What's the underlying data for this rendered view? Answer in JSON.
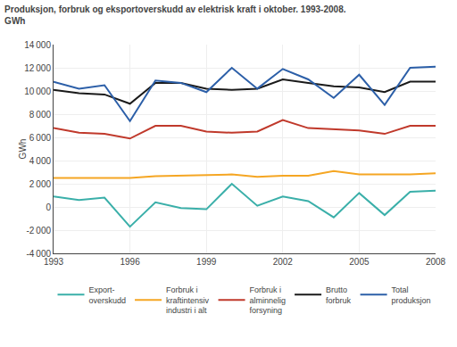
{
  "chart_data": {
    "type": "line",
    "title": "Produksjon, forbruk og eksportoverskudd av elektrisk kraft i oktober. 1993-2008.",
    "subtitle": "GWh",
    "y_label": "GWh",
    "x": [
      1993,
      1994,
      1995,
      1996,
      1997,
      1998,
      1999,
      2000,
      2001,
      2002,
      2003,
      2004,
      2005,
      2006,
      2007,
      2008
    ],
    "series": [
      {
        "name": "Export-\noverskudd",
        "color": "#3aafa9",
        "values": [
          900,
          600,
          800,
          -1700,
          400,
          -100,
          -200,
          2000,
          100,
          900,
          500,
          -900,
          1200,
          -700,
          1300,
          1400
        ]
      },
      {
        "name": "Forbruk i\nkraftintensiv\nindustri i alt",
        "color": "#f5a623",
        "values": [
          2500,
          2500,
          2500,
          2500,
          2650,
          2700,
          2750,
          2800,
          2600,
          2700,
          2700,
          3100,
          2800,
          2800,
          2800,
          2900
        ]
      },
      {
        "name": "Forbruk i\nalminnelig\nforsyning",
        "color": "#c0392b",
        "values": [
          6800,
          6400,
          6300,
          5900,
          7000,
          7000,
          6500,
          6400,
          6500,
          7500,
          6800,
          6700,
          6600,
          6300,
          7000,
          7000
        ]
      },
      {
        "name": "Brutto\nforbruk",
        "color": "#1a1a1a",
        "values": [
          10100,
          9800,
          9700,
          8900,
          10700,
          10700,
          10200,
          10100,
          10200,
          11000,
          10700,
          10400,
          10300,
          9900,
          10800,
          10800
        ]
      },
      {
        "name": "Total\nproduksjon",
        "color": "#2c5fa8",
        "values": [
          10800,
          10200,
          10500,
          7400,
          10900,
          10700,
          9900,
          12000,
          10200,
          11900,
          11000,
          9400,
          11400,
          8800,
          12000,
          12100
        ]
      }
    ],
    "xlim": [
      1993,
      2008
    ],
    "xticks": [
      1993,
      1996,
      1999,
      2002,
      2005,
      2008
    ],
    "ylim": [
      -4000,
      14000
    ],
    "yticks": [
      {
        "value": -4000,
        "label": "-4 000"
      },
      {
        "value": -2000,
        "label": "-2 000"
      },
      0,
      {
        "value": 2000,
        "label": "2 000"
      },
      {
        "value": 4000,
        "label": "4 000"
      },
      {
        "value": 6000,
        "label": "6 000"
      },
      {
        "value": 8000,
        "label": "8 000"
      },
      {
        "value": 10000,
        "label": "10 000"
      },
      {
        "value": 12000,
        "label": "12 000"
      },
      {
        "value": 14000,
        "label": "14 000"
      }
    ],
    "grid": true,
    "legend": "bottom"
  }
}
